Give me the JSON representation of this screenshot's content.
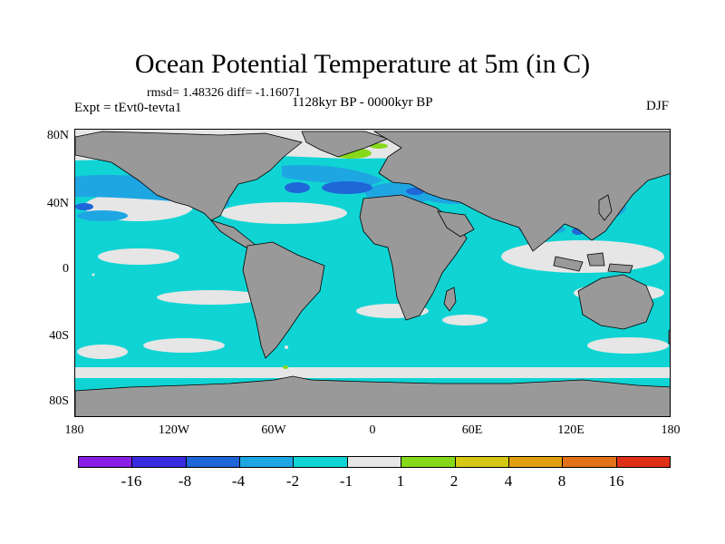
{
  "title": "Ocean Potential Temperature at 5m (in C)",
  "stats": "rmsd= 1.48326 diff= -1.16071",
  "experiment": "Expt = tEvt0-tevta1",
  "period": "1128kyr BP - 0000kyr BP",
  "season": "DJF",
  "lat_labels": [
    "80N",
    "40N",
    "0",
    "40S",
    "80S"
  ],
  "lon_labels": [
    "180",
    "120W",
    "60W",
    "0",
    "60E",
    "120E",
    "180"
  ],
  "colorbar": {
    "labels": [
      "-16",
      "-8",
      "-4",
      "-2",
      "-1",
      "1",
      "2",
      "4",
      "8",
      "16"
    ],
    "colors": [
      "#8a1ee6",
      "#3a2ae0",
      "#1f66d8",
      "#1ea6e2",
      "#10d4d4",
      "#e6e6e6",
      "#86d81a",
      "#d4c814",
      "#e0a010",
      "#e2721a",
      "#e0301a"
    ]
  },
  "map_colors": {
    "land": "#999999",
    "no_data": "#e6e6e6",
    "cyan": "#10d4d4",
    "sky": "#1ea6e2",
    "blue": "#1f66d8",
    "green": "#86d81a"
  }
}
